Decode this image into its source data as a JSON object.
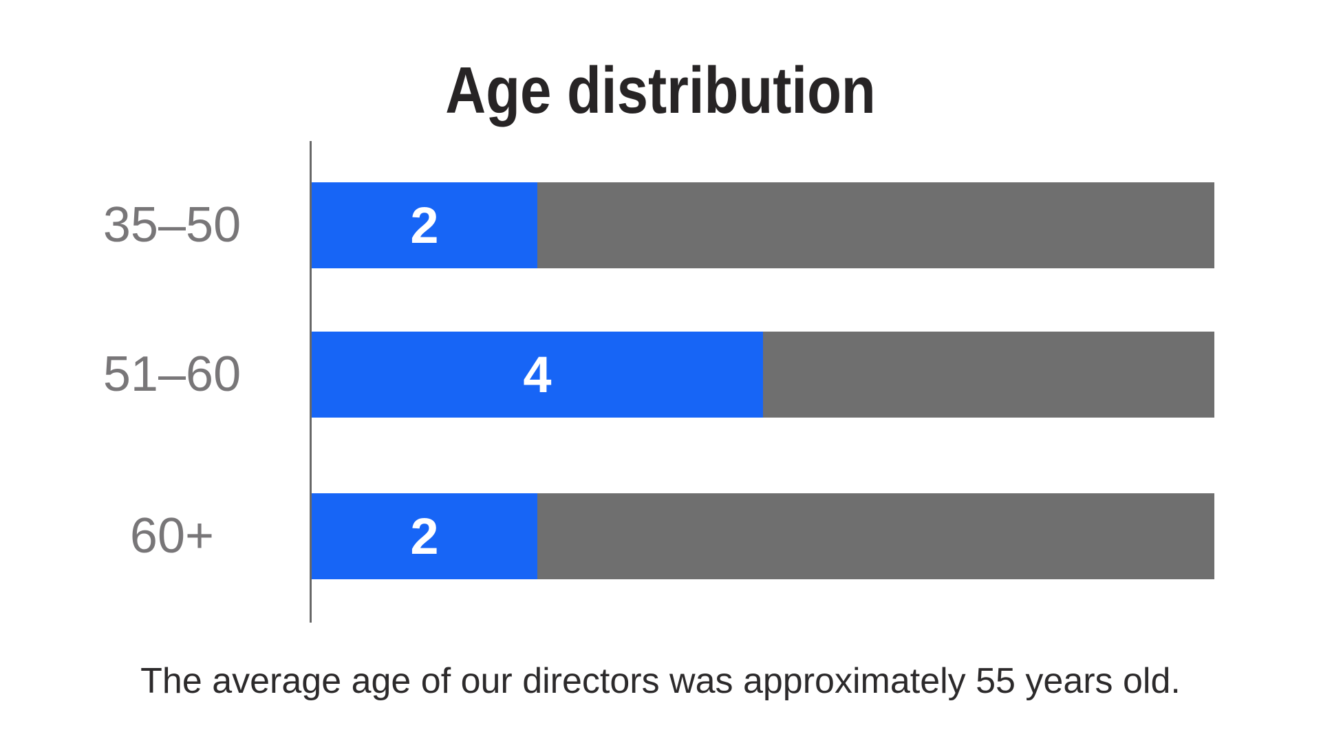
{
  "chart_data": {
    "type": "bar",
    "orientation": "horizontal",
    "title": "Age distribution",
    "categories": [
      "35–50",
      "51–60",
      "60+"
    ],
    "values": [
      2,
      4,
      2
    ],
    "value_labels": [
      "2",
      "4",
      "2"
    ],
    "total": 8,
    "xlim": [
      0,
      8
    ],
    "caption": "The average age of our directors was approximately 55 years old.",
    "grid": "off",
    "legend": "none",
    "colors": {
      "fill": "#1765F6",
      "track": "#6F6F6F",
      "axis_line": "#686868",
      "category_label": "#787678",
      "value_label": "#FFFFFF",
      "title": "#272425",
      "caption": "#2C2A2B",
      "background": "#FFFFFF"
    }
  }
}
